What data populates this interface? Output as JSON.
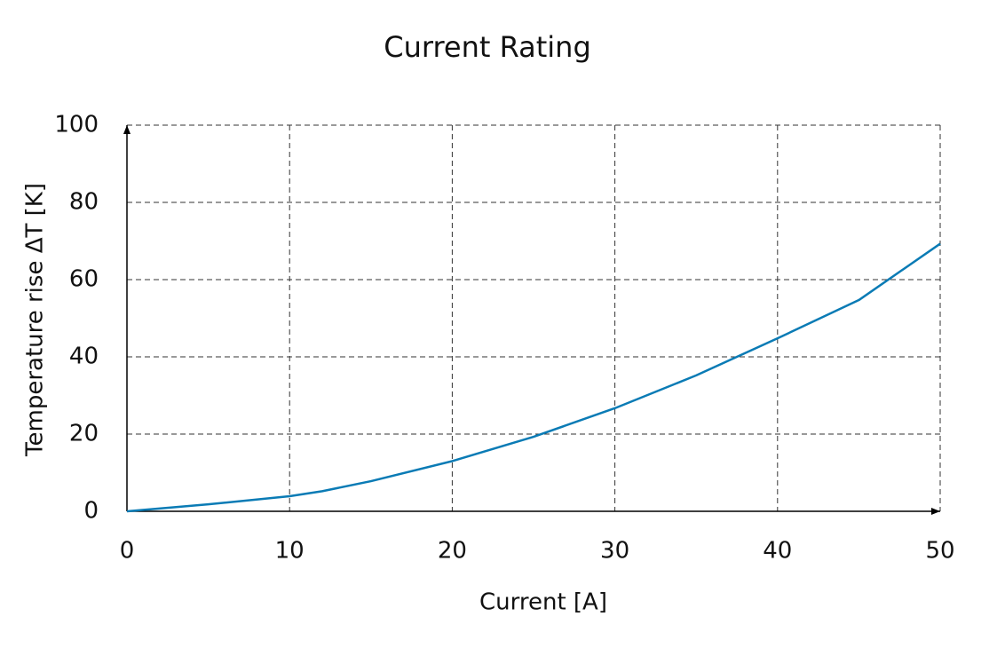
{
  "chart_data": {
    "type": "line",
    "title": "Current Rating",
    "x_label": "Current [A]",
    "y_label": "Temperature rise ΔT [K]",
    "x": [
      0,
      5,
      10,
      12,
      15,
      20,
      25,
      30,
      35,
      40,
      45,
      50
    ],
    "series": [
      {
        "name": "Temperature rise",
        "color": "#0a7bb5",
        "values": [
          0,
          1.8,
          3.9,
          5.2,
          7.8,
          13,
          19.3,
          26.7,
          35.2,
          44.8,
          54.7,
          69.3
        ]
      }
    ],
    "xlim": [
      0,
      50
    ],
    "xticks": [
      0,
      10,
      20,
      30,
      40,
      50
    ],
    "ylim": [
      0,
      100
    ],
    "yticks": [
      0,
      20,
      40,
      60,
      80,
      100
    ],
    "grid": true
  }
}
